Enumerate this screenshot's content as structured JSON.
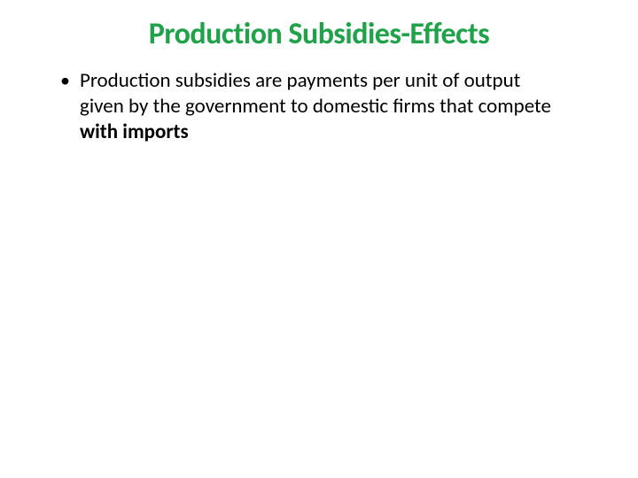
{
  "slide": {
    "title": "Production Subsidies-Effects",
    "title_color": "#1fa24a",
    "bullet": {
      "prefix_text": "Production subsidies are payments per unit of output given by the government to domestic firms that compete ",
      "bold_text": "with imports",
      "text_color": "#000000"
    },
    "background_color": "#ffffff",
    "title_fontsize": 34,
    "body_fontsize": 23
  }
}
